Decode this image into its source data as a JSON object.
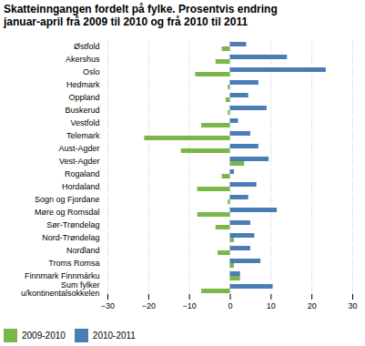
{
  "chart_data": {
    "type": "bar",
    "orientation": "horizontal",
    "title": "Skatteinngangen fordelt på fylke. Prosentvis endring\njanuar-april frå 2009 til 2010 og frå 2010 til 2011",
    "categories": [
      "Østfold",
      "Akershus",
      "Oslo",
      "Hedmark",
      "Oppland",
      "Buskerud",
      "Vestfold",
      "Telemark",
      "Aust-Agder",
      "Vest-Agder",
      "Rogaland",
      "Hordaland",
      "Sogn og Fjordane",
      "Møre og Romsdal",
      "Sør-Trøndelag",
      "Nord-Trøndelag",
      "Nordland",
      "Troms Romsa",
      "Finnmark Finnmárku",
      "Sum fylker\nu/kontinentalsokkelen"
    ],
    "series": [
      {
        "name": "2009-2010",
        "color": "#7ab648",
        "values": [
          -2.0,
          -3.5,
          -8.5,
          -0.5,
          -1.0,
          -0.5,
          -7.0,
          -21.0,
          -12.0,
          3.5,
          -2.0,
          -8.0,
          -0.5,
          -8.0,
          -3.5,
          1.0,
          -3.0,
          1.0,
          2.5,
          -7.0
        ]
      },
      {
        "name": "2010-2011",
        "color": "#4a7db5",
        "values": [
          4.0,
          14.0,
          23.5,
          7.0,
          4.5,
          9.0,
          2.0,
          5.0,
          7.0,
          9.5,
          1.0,
          6.5,
          4.5,
          11.5,
          5.0,
          6.0,
          5.0,
          7.5,
          2.5,
          10.5
        ]
      }
    ],
    "xlim": [
      -30,
      30
    ],
    "xticks": [
      -30,
      -20,
      -10,
      0,
      10,
      20,
      30
    ],
    "grid": true,
    "legend": "lower left"
  }
}
